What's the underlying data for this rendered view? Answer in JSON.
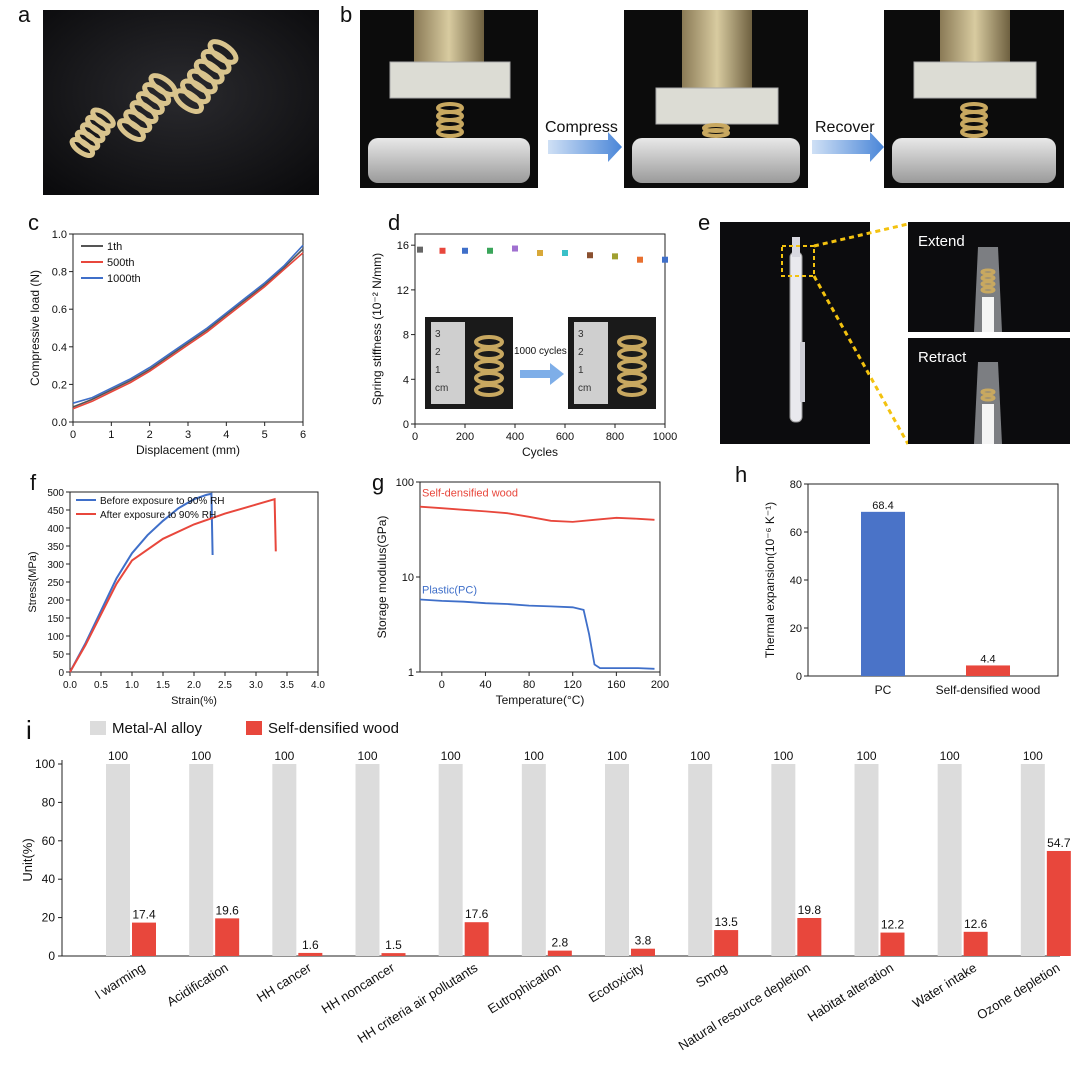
{
  "panels": {
    "a": "a",
    "b": "b",
    "c": "c",
    "d": "d",
    "e": "e",
    "f": "f",
    "g": "g",
    "h": "h",
    "i": "i"
  },
  "panel_b": {
    "compress_label": "Compress",
    "recover_label": "Recover"
  },
  "panel_d": {
    "inset_arrow_label": "1000 cycles",
    "ruler_marks": [
      "3",
      "2",
      "1",
      "cm"
    ]
  },
  "panel_e": {
    "extend_label": "Extend",
    "retract_label": "Retract"
  },
  "colors": {
    "red": "#e8473c",
    "blue": "#3f6fc9",
    "gray_series": "#555555",
    "bar_blue": "#4a73c8",
    "bar_red": "#e8473c",
    "bar_gray": "#dcdcdc"
  },
  "chart_data": [
    {
      "id": "c",
      "type": "line",
      "xlabel": "Displacement (mm)",
      "ylabel": "Compressive load (N)",
      "xlim": [
        0,
        6
      ],
      "ylim": [
        0,
        1.0
      ],
      "xticks": [
        "0",
        "1",
        "2",
        "3",
        "4",
        "5",
        "6"
      ],
      "yticks": [
        "0.0",
        "0.2",
        "0.4",
        "0.6",
        "0.8",
        "1.0"
      ],
      "legend": [
        "1th",
        "500th",
        "1000th"
      ],
      "series": [
        {
          "name": "1th",
          "x": [
            0,
            0.5,
            1,
            1.5,
            2,
            2.5,
            3,
            3.5,
            4,
            4.5,
            5,
            5.5,
            6
          ],
          "y": [
            0.08,
            0.12,
            0.17,
            0.22,
            0.28,
            0.35,
            0.42,
            0.49,
            0.57,
            0.65,
            0.73,
            0.82,
            0.92
          ]
        },
        {
          "name": "500th",
          "x": [
            0,
            0.5,
            1,
            1.5,
            2,
            2.5,
            3,
            3.5,
            4,
            4.5,
            5,
            5.5,
            6
          ],
          "y": [
            0.07,
            0.11,
            0.16,
            0.21,
            0.27,
            0.34,
            0.41,
            0.48,
            0.56,
            0.64,
            0.72,
            0.81,
            0.9
          ]
        },
        {
          "name": "1000th",
          "x": [
            0,
            0.5,
            1,
            1.5,
            2,
            2.5,
            3,
            3.5,
            4,
            4.5,
            5,
            5.5,
            6
          ],
          "y": [
            0.1,
            0.13,
            0.18,
            0.23,
            0.29,
            0.36,
            0.43,
            0.5,
            0.58,
            0.66,
            0.74,
            0.83,
            0.94
          ]
        }
      ]
    },
    {
      "id": "d",
      "type": "scatter",
      "xlabel": "Cycles",
      "ylabel": "Spring stiffness (10⁻² N/mm)",
      "xlim": [
        0,
        1000
      ],
      "ylim": [
        0,
        17
      ],
      "xticks": [
        "0",
        "200",
        "400",
        "600",
        "800",
        "1000"
      ],
      "yticks": [
        "0",
        "4",
        "8",
        "12",
        "16"
      ],
      "x": [
        20,
        110,
        200,
        300,
        400,
        500,
        600,
        700,
        800,
        900,
        1000
      ],
      "y": [
        15.6,
        15.5,
        15.5,
        15.5,
        15.7,
        15.3,
        15.3,
        15.1,
        15.0,
        14.7,
        14.7
      ],
      "point_colors": [
        "#666666",
        "#e8473c",
        "#3f6fc9",
        "#3aa55a",
        "#a070d0",
        "#d8a838",
        "#3ac0c8",
        "#8a5030",
        "#a0a030",
        "#e87030",
        "#3f6fc9"
      ]
    },
    {
      "id": "f",
      "type": "line",
      "xlabel": "Strain(%)",
      "ylabel": "Stress(MPa)",
      "xlim": [
        0,
        4.0
      ],
      "ylim": [
        0,
        500
      ],
      "xticks": [
        "0.0",
        "0.5",
        "1.0",
        "1.5",
        "2.0",
        "2.5",
        "3.0",
        "3.5",
        "4.0"
      ],
      "yticks": [
        "0",
        "50",
        "100",
        "150",
        "200",
        "250",
        "300",
        "350",
        "400",
        "450",
        "500"
      ],
      "legend": [
        "Before exposure to 90% RH",
        "After exposure to 90% RH"
      ],
      "series": [
        {
          "name": "Before exposure to 90% RH",
          "x": [
            0,
            0.25,
            0.5,
            0.75,
            1.0,
            1.25,
            1.5,
            1.75,
            2.0,
            2.2,
            2.28,
            2.3
          ],
          "y": [
            0,
            80,
            170,
            260,
            330,
            380,
            420,
            455,
            480,
            492,
            495,
            325
          ]
        },
        {
          "name": "After exposure to 90% RH",
          "x": [
            0,
            0.25,
            0.5,
            0.75,
            1.0,
            1.5,
            2.0,
            2.5,
            3.0,
            3.3,
            3.32
          ],
          "y": [
            0,
            75,
            160,
            245,
            310,
            370,
            410,
            440,
            465,
            480,
            335
          ]
        }
      ]
    },
    {
      "id": "g",
      "type": "line",
      "yscale": "log",
      "xlabel": "Temperature(°C)",
      "ylabel": "Storage modulus(GPa)",
      "xlim": [
        -20,
        200
      ],
      "ylim": [
        1,
        100
      ],
      "xticks": [
        "0",
        "40",
        "80",
        "120",
        "160",
        "200"
      ],
      "yticks": [
        "1",
        "10",
        "100"
      ],
      "annotations": [
        "Self-densified wood",
        "Plastic(PC)"
      ],
      "series": [
        {
          "name": "Self-densified wood",
          "x": [
            -20,
            0,
            20,
            40,
            60,
            80,
            100,
            120,
            140,
            160,
            180,
            195
          ],
          "y": [
            55,
            53,
            51,
            49,
            47,
            43,
            39,
            38,
            40,
            42,
            41,
            40
          ]
        },
        {
          "name": "Plastic(PC)",
          "x": [
            -20,
            0,
            20,
            40,
            60,
            80,
            100,
            120,
            130,
            135,
            140,
            145,
            160,
            180,
            195
          ],
          "y": [
            5.8,
            5.6,
            5.5,
            5.3,
            5.2,
            5.0,
            4.9,
            4.8,
            4.5,
            2.5,
            1.2,
            1.1,
            1.1,
            1.1,
            1.08
          ]
        }
      ]
    },
    {
      "id": "h",
      "type": "bar",
      "ylabel": "Thermal expansion(10⁻⁶ K⁻¹)",
      "ylim": [
        0,
        80
      ],
      "yticks": [
        "0",
        "20",
        "40",
        "60",
        "80"
      ],
      "categories": [
        "PC",
        "Self-densified wood"
      ],
      "values": [
        68.4,
        4.4
      ],
      "value_labels": [
        "68.4",
        "4.4"
      ]
    },
    {
      "id": "i",
      "type": "bar",
      "ylabel": "Unit(%)",
      "ylim": [
        0,
        100
      ],
      "yticks": [
        "0",
        "20",
        "40",
        "60",
        "80",
        "100"
      ],
      "legend": [
        "Metal-Al alloy",
        "Self-densified wood"
      ],
      "categories": [
        "l warming",
        "Acidification",
        "HH cancer",
        "HH noncancer",
        "HH criteria air pollutants",
        "Eutrophication",
        "Ecotoxicity",
        "Smog",
        "Natural resource depletion",
        "Habitat alteration",
        "Water intake",
        "Ozone depletion"
      ],
      "series": [
        {
          "name": "Metal-Al alloy",
          "values": [
            100,
            100,
            100,
            100,
            100,
            100,
            100,
            100,
            100,
            100,
            100,
            100
          ],
          "value_labels": [
            "100",
            "100",
            "100",
            "100",
            "100",
            "100",
            "100",
            "100",
            "100",
            "100",
            "100",
            "100"
          ]
        },
        {
          "name": "Self-densified wood",
          "values": [
            17.4,
            19.6,
            1.6,
            1.5,
            17.6,
            2.8,
            3.8,
            13.5,
            19.8,
            12.2,
            12.6,
            54.7
          ],
          "value_labels": [
            "17.4",
            "19.6",
            "1.6",
            "1.5",
            "17.6",
            "2.8",
            "3.8",
            "13.5",
            "19.8",
            "12.2",
            "12.6",
            "54.7"
          ]
        }
      ]
    }
  ]
}
